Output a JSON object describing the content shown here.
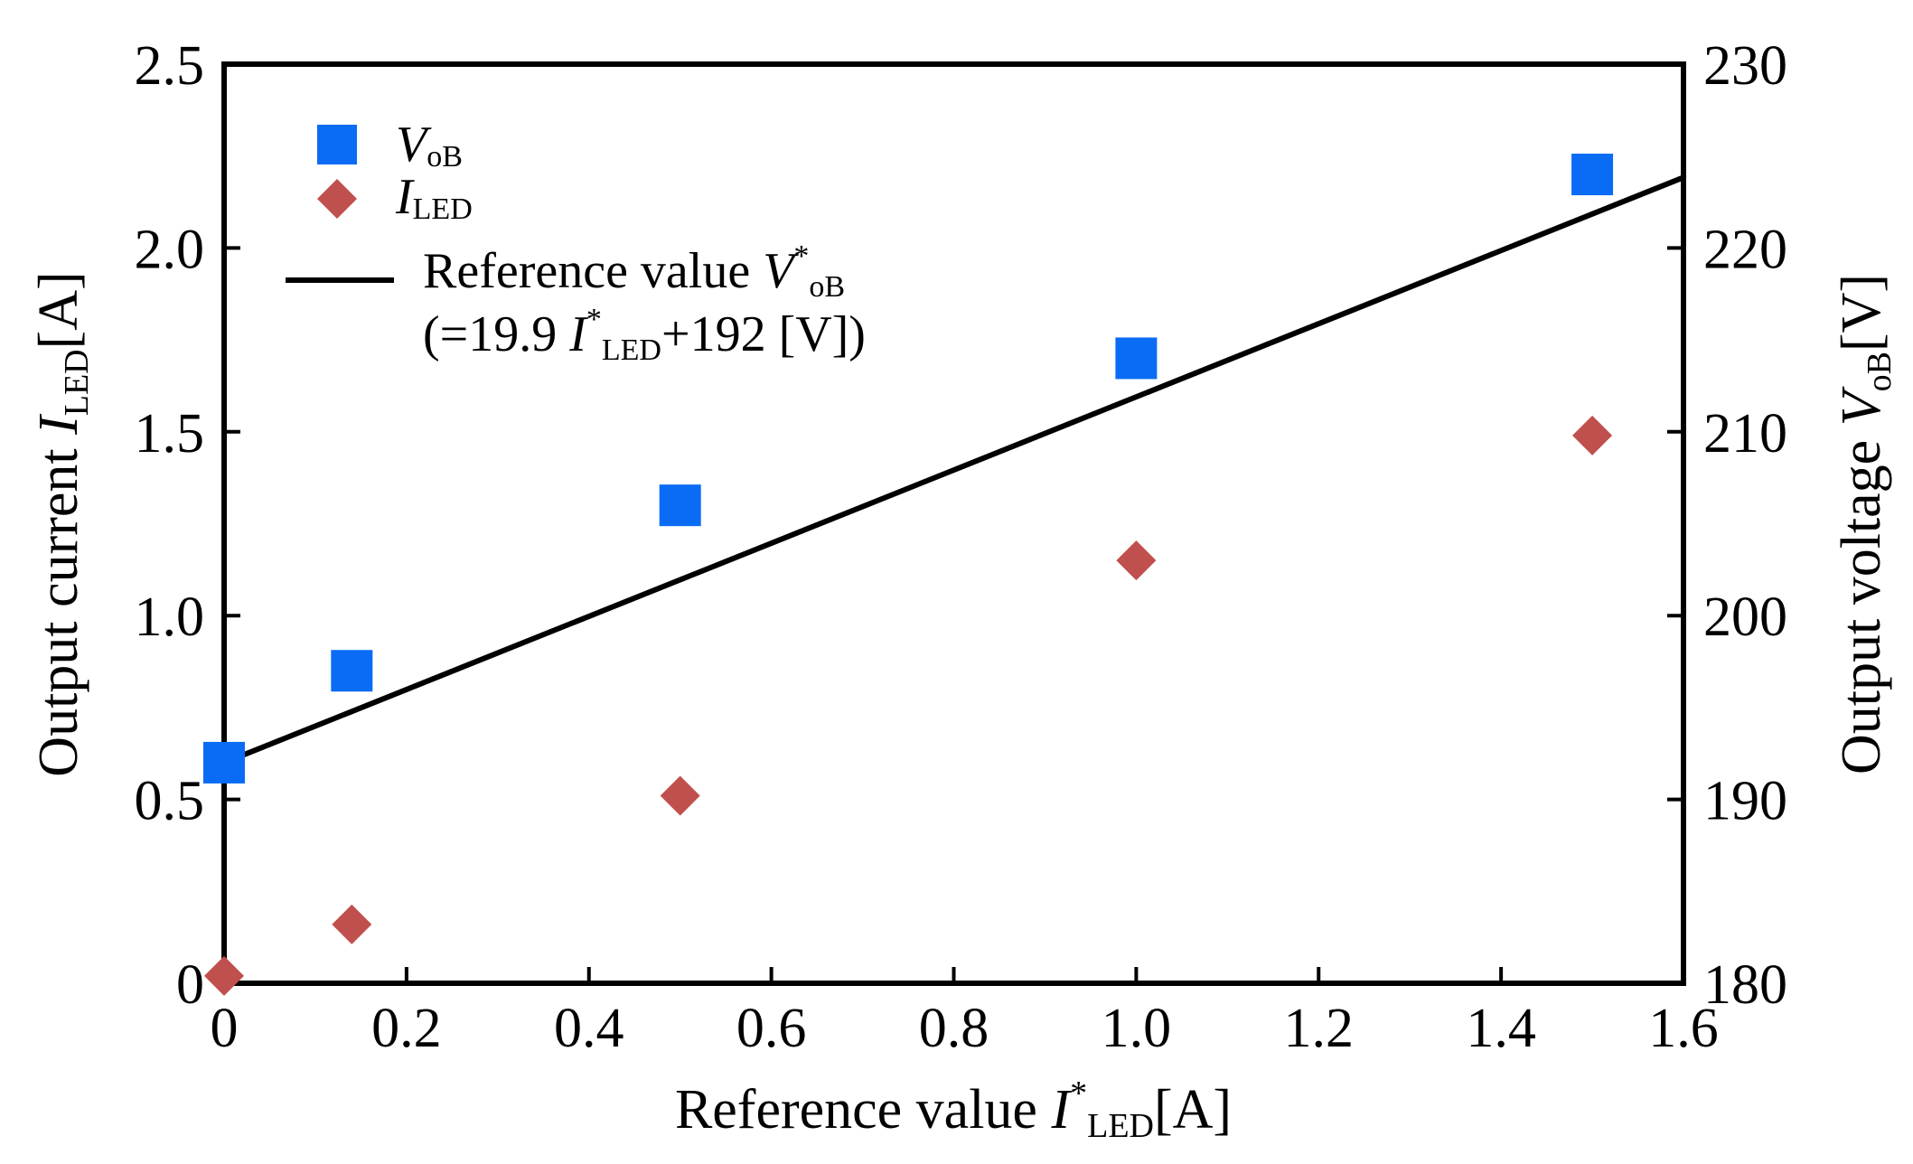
{
  "chart_data": {
    "type": "scatter",
    "x_axis": {
      "label_main": "Reference value ",
      "label_symbol": "I",
      "label_sup": "*",
      "label_sub": "LED",
      "label_unit": "[A]",
      "range": [
        0,
        1.6
      ],
      "ticks": [
        "0",
        "0.2",
        "0.4",
        "0.6",
        "0.8",
        "1.0",
        "1.2",
        "1.4",
        "1.6"
      ],
      "tick_values": [
        0,
        0.2,
        0.4,
        0.6,
        0.8,
        1.0,
        1.2,
        1.4,
        1.6
      ]
    },
    "y_left": {
      "label_main": "Output current ",
      "label_symbol": "I",
      "label_sub": "LED",
      "label_unit": "[A]",
      "range": [
        0,
        2.5
      ],
      "ticks": [
        "0",
        "0.5",
        "1.0",
        "1.5",
        "2.0",
        "2.5"
      ],
      "tick_values": [
        0,
        0.5,
        1.0,
        1.5,
        2.0,
        2.5
      ]
    },
    "y_right": {
      "label_main": "Output voltage ",
      "label_symbol": "V",
      "label_sub": "oB",
      "label_unit": "[V]",
      "range": [
        180,
        230
      ],
      "ticks": [
        "180",
        "190",
        "200",
        "210",
        "220",
        "230"
      ],
      "tick_values": [
        180,
        190,
        200,
        210,
        220,
        230
      ]
    },
    "series": [
      {
        "name": "VoB",
        "legend_symbol": "V",
        "legend_sub": "oB",
        "marker": "square",
        "color": "#0a6cf5",
        "axis": "right",
        "x": [
          0.0,
          0.14,
          0.5,
          1.0,
          1.5
        ],
        "y": [
          192,
          197,
          206,
          214,
          224
        ]
      },
      {
        "name": "ILED",
        "legend_symbol": "I",
        "legend_sub": "LED",
        "marker": "diamond",
        "color": "#c0504d",
        "axis": "left",
        "x": [
          0.0,
          0.14,
          0.5,
          1.0,
          1.5
        ],
        "y": [
          0.02,
          0.16,
          0.51,
          1.15,
          1.49
        ]
      },
      {
        "name": "Reference value V*oB",
        "marker": "line",
        "color": "#000000",
        "axis": "right",
        "slope": 19.9,
        "intercept": 192,
        "x_range": [
          0,
          1.6
        ]
      }
    ],
    "legend": {
      "placement": "top-left",
      "ref_line1_main": "Reference value ",
      "ref_line1_symbol": "V",
      "ref_line1_sup": "*",
      "ref_line1_sub": "oB",
      "ref_line2_a": "(=19.9 ",
      "ref_line2_symbol": "I",
      "ref_line2_sup": "*",
      "ref_line2_sub": "LED",
      "ref_line2_b": "+192 [V])"
    }
  }
}
